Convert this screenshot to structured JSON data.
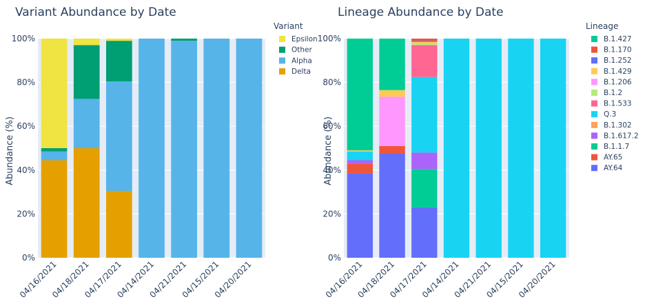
{
  "chart_data": [
    {
      "type": "bar",
      "stacked": true,
      "title": "Variant Abundance by Date",
      "xlabel": "",
      "ylabel": "Abundance (%)",
      "ylim": [
        0,
        100
      ],
      "yticks": [
        "0%",
        "20%",
        "40%",
        "60%",
        "80%",
        "100%"
      ],
      "categories": [
        "04/16/2021",
        "04/18/2021",
        "04/17/2021",
        "04/14/2021",
        "04/21/2021",
        "04/15/2021",
        "04/20/2021"
      ],
      "legend_title": "Variant",
      "legend_placement": "right",
      "series": [
        {
          "name": "Delta",
          "color": "#E5A000",
          "values": [
            44.5,
            50,
            30.5,
            0,
            0,
            0,
            0
          ]
        },
        {
          "name": "Alpha",
          "color": "#56B4E9",
          "values": [
            4,
            22.5,
            50,
            100,
            99,
            100,
            100
          ]
        },
        {
          "name": "Other",
          "color": "#009E73",
          "values": [
            1.5,
            24.5,
            18.5,
            0,
            1,
            0,
            0
          ]
        },
        {
          "name": "Epsilon",
          "color": "#F0E442",
          "values": [
            50,
            3,
            1,
            0,
            0,
            0,
            0
          ]
        }
      ],
      "legend_order": [
        "Epsilon",
        "Other",
        "Alpha",
        "Delta"
      ]
    },
    {
      "type": "bar",
      "stacked": true,
      "title": "Lineage Abundance by Date",
      "xlabel": "",
      "ylabel": "Abundance (%)",
      "ylim": [
        0,
        100
      ],
      "yticks": [
        "0%",
        "20%",
        "40%",
        "60%",
        "80%",
        "100%"
      ],
      "categories": [
        "04/16/2021",
        "04/18/2021",
        "04/17/2021",
        "04/14/2021",
        "04/21/2021",
        "04/15/2021",
        "04/20/2021"
      ],
      "legend_title": "Lineage",
      "legend_placement": "right",
      "series": [
        {
          "name": "AY.64",
          "color": "#636EFA",
          "values": [
            38.5,
            47.5,
            23,
            0,
            0,
            0,
            0
          ]
        },
        {
          "name": "AY.65",
          "color": "#EF553B",
          "values": [
            4.5,
            3.5,
            0,
            0,
            0,
            0,
            0
          ]
        },
        {
          "name": "B.1.1.7",
          "color": "#00CC96",
          "values": [
            0,
            0,
            17.5,
            0,
            0,
            0,
            0
          ]
        },
        {
          "name": "B.1.617.2",
          "color": "#AB63FA",
          "values": [
            1.5,
            0,
            7.5,
            0,
            0,
            0,
            0
          ]
        },
        {
          "name": "B.1.302",
          "color": "#FFA15A",
          "values": [
            0,
            0,
            0,
            0,
            0,
            0,
            0
          ]
        },
        {
          "name": "Q.3",
          "color": "#19D3F3",
          "values": [
            4,
            0,
            34.5,
            100,
            100,
            100,
            100
          ]
        },
        {
          "name": "B.1.533",
          "color": "#FF6692",
          "values": [
            0,
            0,
            14.5,
            0,
            0,
            0,
            0
          ]
        },
        {
          "name": "B.1.2",
          "color": "#B6E880",
          "values": [
            0,
            0,
            0.5,
            0,
            0,
            0,
            0
          ]
        },
        {
          "name": "B.1.206",
          "color": "#FF97FF",
          "values": [
            0,
            22.5,
            0,
            0,
            0,
            0,
            0
          ]
        },
        {
          "name": "B.1.429",
          "color": "#FECB52",
          "values": [
            0.5,
            3,
            1,
            0,
            0,
            0,
            0
          ]
        },
        {
          "name": "B.1.252",
          "color": "#636EFA",
          "values": [
            0,
            0,
            0.5,
            0,
            0,
            0,
            0
          ]
        },
        {
          "name": "B.1.170",
          "color": "#EF553B",
          "values": [
            0,
            0,
            1,
            0,
            0,
            0,
            0
          ]
        },
        {
          "name": "B.1.427",
          "color": "#00CC96",
          "values": [
            51,
            23.5,
            0,
            0,
            0,
            0,
            0
          ]
        }
      ],
      "legend_order": [
        "B.1.427",
        "B.1.170",
        "B.1.252",
        "B.1.429",
        "B.1.206",
        "B.1.2",
        "B.1.533",
        "Q.3",
        "B.1.302",
        "B.1.617.2",
        "B.1.1.7",
        "AY.65",
        "AY.64"
      ]
    }
  ]
}
